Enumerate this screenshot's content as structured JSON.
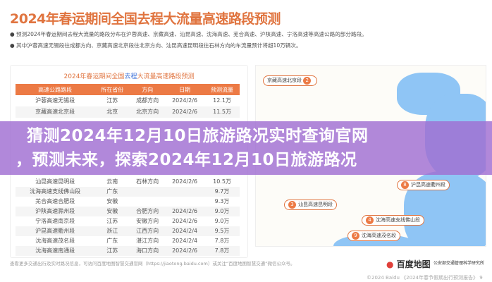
{
  "title": "2024年春运期间全国去程大流量高速路段预测",
  "bullets": [
    "预测2024年春运期间去程大流量的路段分布在沪蓉高速、京藏高速、汕昆高速、沈海高速、芜合高速、沪陕高速、宁洛高速等高速公路的部分路段。",
    "其中沪蓉高速无锡段往成都方向、京藏高速北京段往北京方向、汕昆高速昆明段往石林方向的车流量预计将超10万辆次。"
  ],
  "table": {
    "title_pre": "2024年春运期间全国",
    "title_hl": "去程",
    "title_post": "大流量高速路段预测",
    "headers": [
      "高速公路路段",
      "所在省份",
      "方向",
      "日期",
      "预测流量"
    ],
    "rows": [
      [
        "沪蓉高速无锡段",
        "江苏",
        "成都方向",
        "2024/2/6",
        "12.1万"
      ],
      [
        "京藏高速北京段",
        "北京",
        "北京方向",
        "2024/2/6",
        "11.5万"
      ],
      [
        "汕昆高速昆明段",
        "云南",
        "石林方向",
        "2024/2/6",
        "10.5万"
      ],
      [
        "沈海高速支线佛山段",
        "广东",
        "",
        "",
        "9.7万"
      ],
      [
        "芜合高速合肥段",
        "安徽",
        "",
        "",
        "9.3万"
      ],
      [
        "沪陕高速滁州段",
        "安徽",
        "合肥方向",
        "2024/2/6",
        "9.0万"
      ],
      [
        "宁洛高速南京段",
        "江苏",
        "安徽方向",
        "2024/2/6",
        "9.0万"
      ],
      [
        "沪昆高速衢州段",
        "浙江",
        "江西方向",
        "2024/2/4",
        "9.5万"
      ],
      [
        "沈海高速茂名段",
        "广东",
        "湛江方向",
        "2024/2/4",
        "7.8万"
      ],
      [
        "沈海高速南通段",
        "江苏",
        "海口方向",
        "2024/2/6",
        "7.8万"
      ]
    ]
  },
  "map": {
    "tags": [
      {
        "n": "2",
        "label": "京藏高速北京段"
      },
      {
        "n": "8",
        "label": "沪昆高速衢州段"
      },
      {
        "n": "3",
        "label": "汕昆高速昆明段"
      },
      {
        "n": "4",
        "label": "沈海高速支线佛山段"
      },
      {
        "n": "9",
        "label": "沈海高速茂名段"
      }
    ]
  },
  "overlay": {
    "line1": "猜测2024年12月10日旅游路况实时查询官网",
    "line2": "，预测未来，探索2024年12月10日旅游路况"
  },
  "footer": "查看更多交通出行及实时路况信息，可访问百度地图智慧交通官网（https://jiaotong.baidu.com）或关注“百度地图智慧交通”微信公众号。",
  "logos": {
    "baidu": "百度地图",
    "tmri": "公安部交通管理科学研究所"
  },
  "caption": "©2024 Baidu 《2024年春节假期出行预测报告》 9",
  "colors": {
    "accent": "#ec7a45",
    "overlay": "#a06ed2",
    "sea": "#8fc5f5"
  }
}
